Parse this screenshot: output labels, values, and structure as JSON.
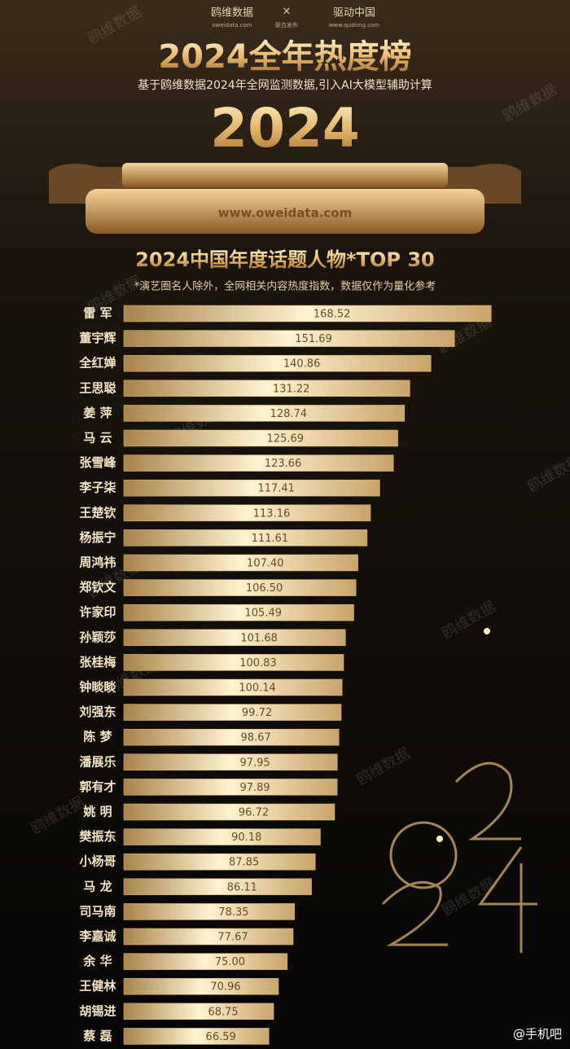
{
  "header": {
    "logo1": "鸥维数据",
    "logo1_url": "oweidata.com",
    "cross": "×",
    "joint": "联合发布",
    "logo2": "驱动中国",
    "logo2_url": "www.qudong.com",
    "title": "2024全年热度榜",
    "subtitle": "基于鸥维数据2024年全网监测数据,引入AI大模型辅助计算",
    "big_year": "2024",
    "website": "www.oweidata.com"
  },
  "watermark": "鸥维数据",
  "footer": "@手机吧",
  "chart_data": {
    "type": "bar",
    "orientation": "horizontal",
    "title": "2024中国年度话题人物*TOP 30",
    "subtitle": "*演艺圈名人除外，全网相关内容热度指数，数据仅作为量化参考",
    "color": "#d9b877",
    "categories": [
      "雷 军",
      "董宇辉",
      "全红婵",
      "王思聪",
      "姜 萍",
      "马 云",
      "张雪峰",
      "李子柒",
      "王楚钦",
      "杨振宁",
      "周鸿祎",
      "郑钦文",
      "许家印",
      "孙颖莎",
      "张桂梅",
      "钟睒睒",
      "刘强东",
      "陈 梦",
      "潘展乐",
      "郭有才",
      "姚 明",
      "樊振东",
      "小杨哥",
      "马 龙",
      "司马南",
      "李嘉诚",
      "余 华",
      "王健林",
      "胡锡进",
      "蔡 磊"
    ],
    "values": [
      168.52,
      151.69,
      140.86,
      131.22,
      128.74,
      125.69,
      123.66,
      117.41,
      113.16,
      111.61,
      107.4,
      106.5,
      105.49,
      101.68,
      100.83,
      100.14,
      99.72,
      98.67,
      97.95,
      97.89,
      96.72,
      90.18,
      87.85,
      86.11,
      78.35,
      77.67,
      75,
      70.96,
      68.75,
      66.59
    ],
    "value_labels": [
      "168.52",
      "151.69",
      "140.86",
      "131.22",
      "128.74",
      "125.69",
      "123.66",
      "117.41",
      "113.16",
      "111.61",
      "107.40",
      "106.50",
      "105.49",
      "101.68",
      "100.83",
      "100.14",
      "99.72",
      "98.67",
      "97.95",
      "97.89",
      "96.72",
      "90.18",
      "87.85",
      "86.11",
      "78.35",
      "77.67",
      "75.00",
      "70.96",
      "68.75",
      "66.59"
    ]
  }
}
